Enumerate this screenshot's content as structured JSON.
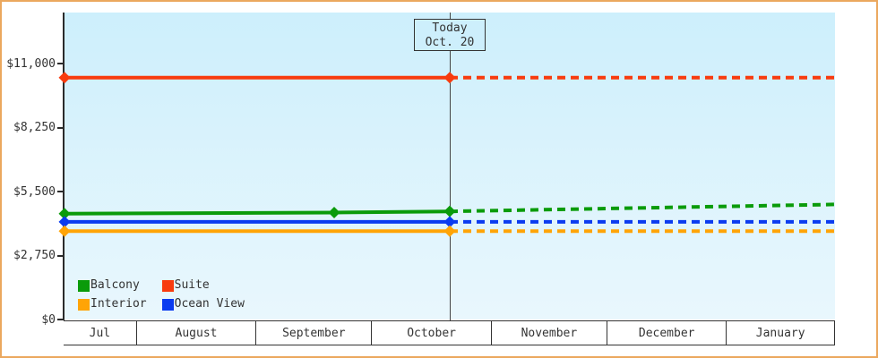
{
  "window": {
    "border_color": "#eba85e",
    "background": "#ffffff"
  },
  "chart_data": {
    "type": "line",
    "title": "",
    "grid": false,
    "legend_position": "bottom-left",
    "ylim": [
      0,
      13200
    ],
    "plot_bg_gradient": [
      "#cdeffc",
      "#e9f7fd"
    ],
    "axis_color": "#2b2b2b",
    "text_color": "#333333",
    "yticks": [
      {
        "label": "$0",
        "value": 0
      },
      {
        "label": "$2,750",
        "value": 2750
      },
      {
        "label": "$5,500",
        "value": 5500
      },
      {
        "label": "$8,250",
        "value": 8250
      },
      {
        "label": "$11,000",
        "value": 11000
      }
    ],
    "months": [
      {
        "label": "Jul",
        "days": 19
      },
      {
        "label": "August",
        "days": 31
      },
      {
        "label": "September",
        "days": 30
      },
      {
        "label": "October",
        "days": 31
      },
      {
        "label": "November",
        "days": 30
      },
      {
        "label": "December",
        "days": 31
      },
      {
        "label": "January",
        "days": 28
      }
    ],
    "today": {
      "x": 0.5,
      "line1": "Today",
      "line2": "Oct. 20",
      "box_bg": "#cdeffc"
    },
    "series": [
      {
        "name": "Suite",
        "color": "#f83b0e",
        "solid": [
          [
            0,
            10400
          ],
          [
            0.5,
            10400
          ]
        ],
        "dashed": [
          [
            0.5,
            10400
          ],
          [
            1,
            10400
          ]
        ],
        "markers": [
          [
            0,
            10400
          ],
          [
            0.5,
            10400
          ]
        ]
      },
      {
        "name": "Balcony",
        "color": "#0a9b0a",
        "solid": [
          [
            0,
            4550
          ],
          [
            0.35,
            4600
          ],
          [
            0.5,
            4650
          ]
        ],
        "dashed": [
          [
            0.5,
            4650
          ],
          [
            1,
            4950
          ]
        ],
        "markers": [
          [
            0,
            4550
          ],
          [
            0.35,
            4600
          ],
          [
            0.5,
            4650
          ]
        ]
      },
      {
        "name": "Ocean View",
        "color": "#0a3bf0",
        "solid": [
          [
            0,
            4200
          ],
          [
            0.5,
            4200
          ]
        ],
        "dashed": [
          [
            0.5,
            4200
          ],
          [
            1,
            4200
          ]
        ],
        "markers": [
          [
            0,
            4200
          ],
          [
            0.5,
            4200
          ]
        ]
      },
      {
        "name": "Interior",
        "color": "#ffa406",
        "solid": [
          [
            0,
            3800
          ],
          [
            0.5,
            3800
          ]
        ],
        "dashed": [
          [
            0.5,
            3800
          ],
          [
            1,
            3800
          ]
        ],
        "markers": [
          [
            0,
            3800
          ],
          [
            0.5,
            3800
          ]
        ]
      }
    ],
    "legend": [
      {
        "label": "Balcony",
        "color": "#0a9b0a"
      },
      {
        "label": "Suite",
        "color": "#f83b0e"
      },
      {
        "label": "Interior",
        "color": "#ffa406"
      },
      {
        "label": "Ocean View",
        "color": "#0a3bf0"
      }
    ]
  }
}
